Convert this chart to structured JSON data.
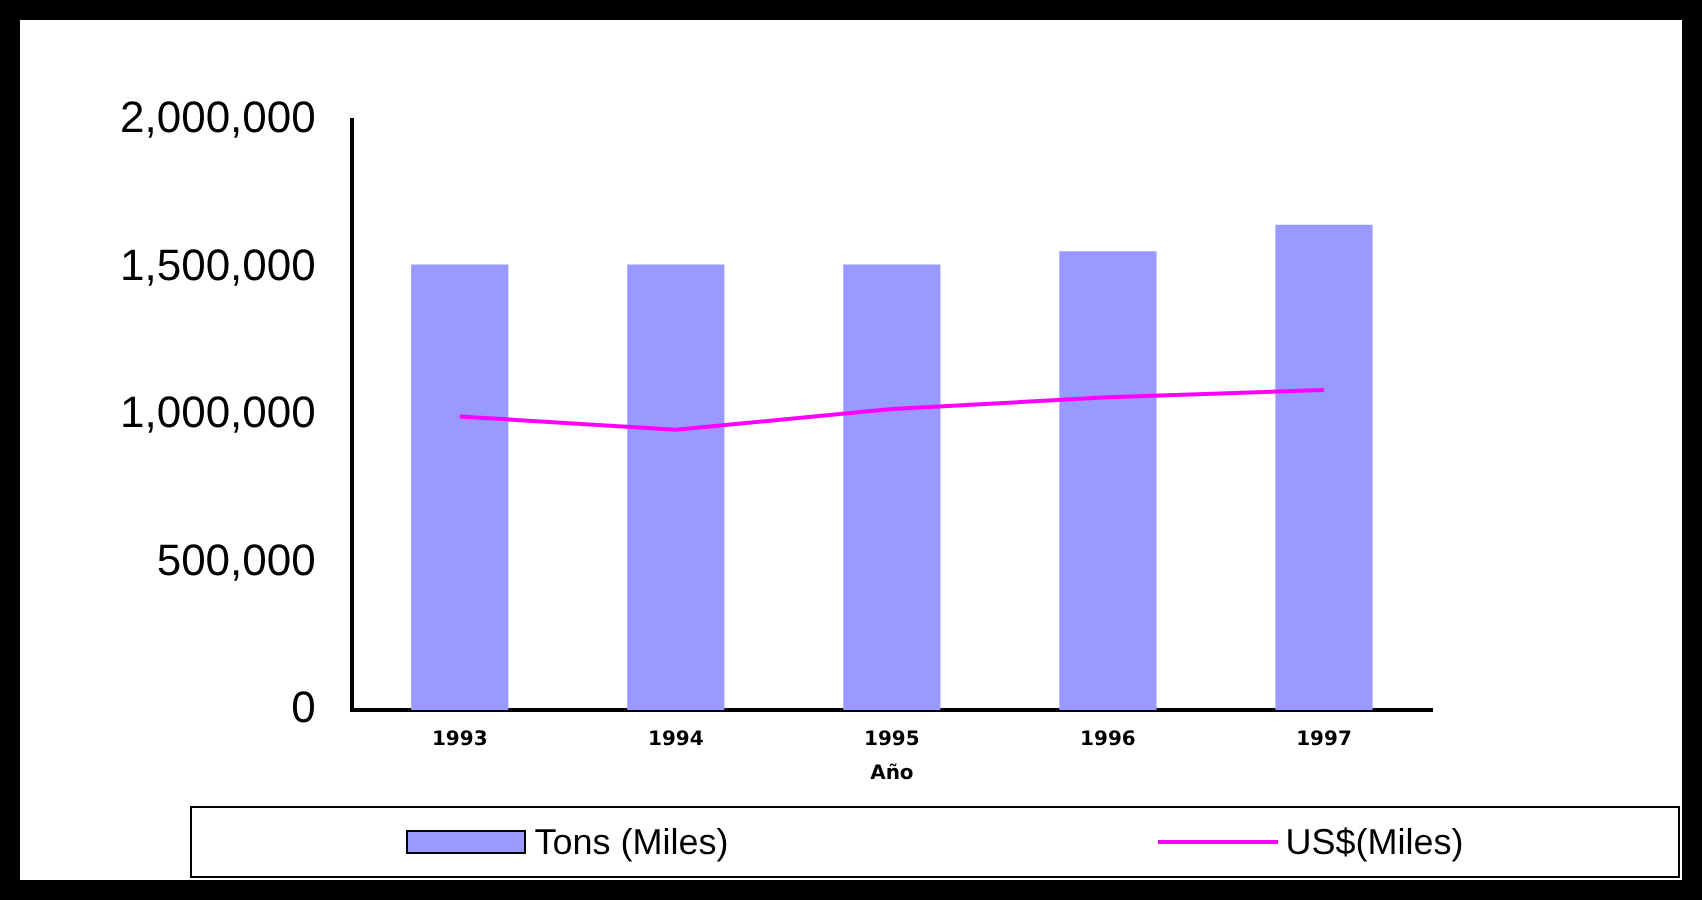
{
  "chart_data": {
    "type": "bar",
    "xlabel": "Año",
    "categories": [
      "1993",
      "1994",
      "1995",
      "1996",
      "1997"
    ],
    "series": [
      {
        "name": "Tons (Miles)",
        "color": "#9999ff",
        "values": [
          1510000,
          1510000,
          1510000,
          1555000,
          1645000
        ]
      },
      {
        "name": "US$(Miles)",
        "type": "line",
        "color": "#ff00ff",
        "values": [
          995000,
          950000,
          1020000,
          1060000,
          1085000
        ]
      }
    ],
    "ylim": [
      0,
      2000000
    ],
    "yticks": [
      0,
      {
        "value": 500000,
        "label": "500,000"
      },
      {
        "value": 1000000,
        "label": "1,000,000"
      },
      {
        "value": 1500000,
        "label": "1,500,000"
      },
      {
        "value": 2000000,
        "label": "2,000,000"
      }
    ],
    "grid": false,
    "legend": "bottom",
    "marker": "none"
  }
}
